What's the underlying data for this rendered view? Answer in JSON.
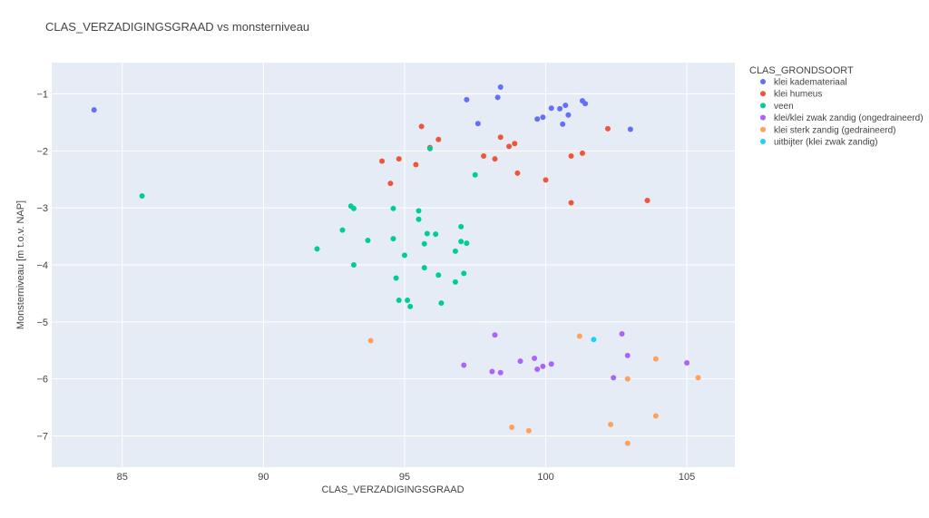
{
  "chart_data": {
    "type": "scatter",
    "title": "CLAS_VERZADIGINGSGRAAD vs monsterniveau",
    "xlabel": "CLAS_VERZADIGINGSGRAAD",
    "ylabel": "Monsterniveau [m t.o.v. NAP]",
    "xlim": [
      82.5,
      106.7
    ],
    "ylim": [
      -7.55,
      -0.45
    ],
    "xticks": [
      85,
      90,
      95,
      100,
      105
    ],
    "yticks": [
      -1,
      -2,
      -3,
      -4,
      -5,
      -6,
      -7
    ],
    "grid": true,
    "legend_title": "CLAS_GRONDSOORT",
    "legend_position": "right",
    "series": [
      {
        "name": "klei kademateriaal",
        "color": "#636efa",
        "points": [
          [
            84.0,
            -1.28
          ],
          [
            97.2,
            -1.1
          ],
          [
            98.3,
            -1.06
          ],
          [
            98.4,
            -0.88
          ],
          [
            97.6,
            -1.52
          ],
          [
            99.7,
            -1.44
          ],
          [
            99.9,
            -1.41
          ],
          [
            100.2,
            -1.25
          ],
          [
            100.5,
            -1.26
          ],
          [
            100.7,
            -1.2
          ],
          [
            100.8,
            -1.37
          ],
          [
            100.6,
            -1.53
          ],
          [
            101.3,
            -1.12
          ],
          [
            101.4,
            -1.17
          ],
          [
            103.0,
            -1.62
          ]
        ]
      },
      {
        "name": "klei humeus",
        "color": "#ef553b",
        "points": [
          [
            95.6,
            -1.57
          ],
          [
            96.2,
            -1.8
          ],
          [
            95.9,
            -1.94
          ],
          [
            94.8,
            -2.14
          ],
          [
            94.2,
            -2.18
          ],
          [
            95.4,
            -2.24
          ],
          [
            94.5,
            -2.57
          ],
          [
            97.8,
            -2.09
          ],
          [
            98.2,
            -2.14
          ],
          [
            98.4,
            -1.76
          ],
          [
            98.7,
            -1.92
          ],
          [
            98.9,
            -1.87
          ],
          [
            99.0,
            -2.39
          ],
          [
            100.0,
            -2.51
          ],
          [
            100.9,
            -2.09
          ],
          [
            101.3,
            -2.04
          ],
          [
            102.2,
            -1.61
          ],
          [
            100.9,
            -2.91
          ],
          [
            103.6,
            -2.87
          ]
        ]
      },
      {
        "name": "veen",
        "color": "#00cc96",
        "points": [
          [
            85.7,
            -2.79
          ],
          [
            95.9,
            -1.96
          ],
          [
            97.5,
            -2.42
          ],
          [
            93.1,
            -2.97
          ],
          [
            93.2,
            -3.01
          ],
          [
            94.6,
            -3.01
          ],
          [
            95.5,
            -3.05
          ],
          [
            95.5,
            -3.2
          ],
          [
            92.8,
            -3.39
          ],
          [
            93.7,
            -3.57
          ],
          [
            94.6,
            -3.54
          ],
          [
            95.8,
            -3.45
          ],
          [
            96.1,
            -3.46
          ],
          [
            95.7,
            -3.63
          ],
          [
            97.0,
            -3.33
          ],
          [
            97.0,
            -3.59
          ],
          [
            97.2,
            -3.62
          ],
          [
            96.8,
            -3.76
          ],
          [
            95.0,
            -3.83
          ],
          [
            91.9,
            -3.72
          ],
          [
            93.2,
            -4.0
          ],
          [
            95.7,
            -4.05
          ],
          [
            96.2,
            -4.18
          ],
          [
            97.1,
            -4.15
          ],
          [
            94.7,
            -4.23
          ],
          [
            96.8,
            -4.3
          ],
          [
            94.8,
            -4.62
          ],
          [
            95.1,
            -4.62
          ],
          [
            95.2,
            -4.73
          ],
          [
            96.3,
            -4.67
          ]
        ]
      },
      {
        "name": "klei/klei zwak zandig (ongedraineerd)",
        "color": "#ab63fa",
        "points": [
          [
            98.2,
            -5.23
          ],
          [
            97.1,
            -5.76
          ],
          [
            98.1,
            -5.87
          ],
          [
            98.4,
            -5.89
          ],
          [
            99.1,
            -5.69
          ],
          [
            99.6,
            -5.64
          ],
          [
            99.7,
            -5.83
          ],
          [
            99.9,
            -5.78
          ],
          [
            100.2,
            -5.74
          ],
          [
            102.7,
            -5.21
          ],
          [
            102.9,
            -5.59
          ],
          [
            102.4,
            -5.98
          ],
          [
            105.0,
            -5.72
          ]
        ]
      },
      {
        "name": "klei sterk zandig (gedraineerd)",
        "color": "#ffa15a",
        "points": [
          [
            93.8,
            -5.33
          ],
          [
            101.2,
            -5.25
          ],
          [
            103.9,
            -5.65
          ],
          [
            102.9,
            -6.0
          ],
          [
            105.4,
            -5.98
          ],
          [
            103.9,
            -6.65
          ],
          [
            102.3,
            -6.8
          ],
          [
            98.8,
            -6.85
          ],
          [
            99.4,
            -6.91
          ],
          [
            102.9,
            -7.13
          ]
        ]
      },
      {
        "name": "uitbijter (klei zwak zandig)",
        "color": "#19d3f3",
        "points": [
          [
            101.7,
            -5.31
          ]
        ]
      }
    ]
  }
}
